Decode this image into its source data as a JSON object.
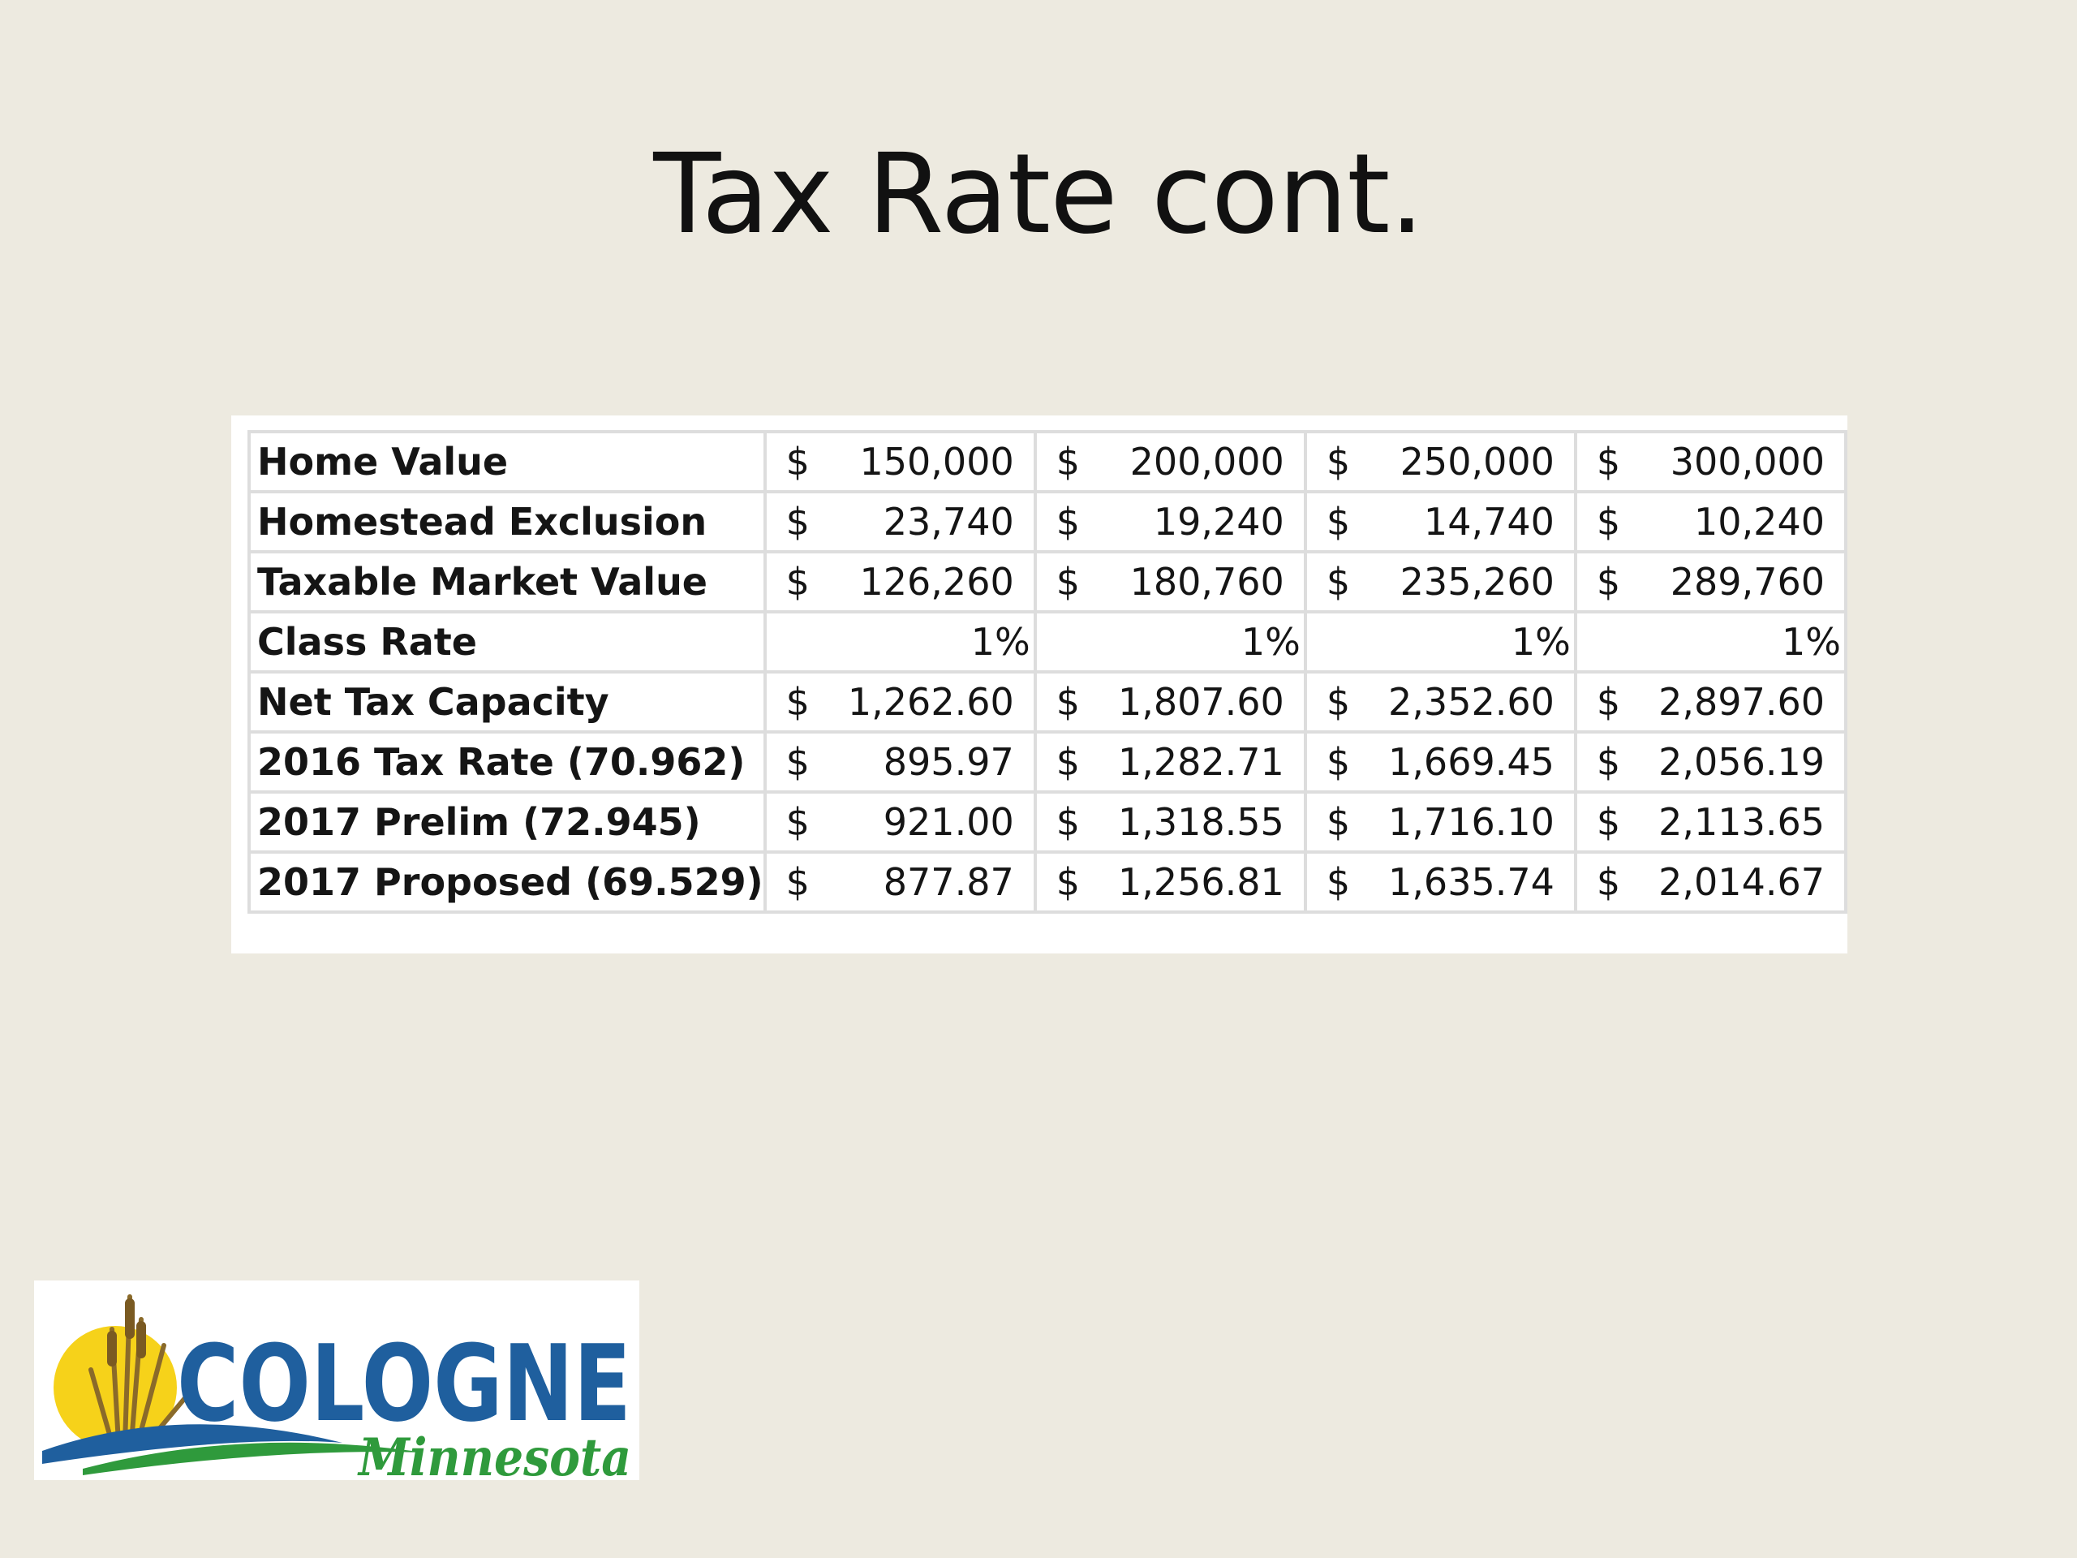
{
  "slide": {
    "title": "Tax Rate cont."
  },
  "table": {
    "rows": [
      {
        "label": "Home Value",
        "cells": [
          {
            "symbol": "$",
            "value": "150,000"
          },
          {
            "symbol": "$",
            "value": "200,000"
          },
          {
            "symbol": "$",
            "value": "250,000"
          },
          {
            "symbol": "$",
            "value": "300,000"
          }
        ]
      },
      {
        "label": "Homestead Exclusion",
        "cells": [
          {
            "symbol": "$",
            "value": "23,740"
          },
          {
            "symbol": "$",
            "value": "19,240"
          },
          {
            "symbol": "$",
            "value": "14,740"
          },
          {
            "symbol": "$",
            "value": "10,240"
          }
        ]
      },
      {
        "label": "Taxable Market Value",
        "cells": [
          {
            "symbol": "$",
            "value": "126,260"
          },
          {
            "symbol": "$",
            "value": "180,760"
          },
          {
            "symbol": "$",
            "value": "235,260"
          },
          {
            "symbol": "$",
            "value": "289,760"
          }
        ]
      },
      {
        "label": "Class Rate",
        "cells": [
          {
            "symbol": "",
            "value": "1%"
          },
          {
            "symbol": "",
            "value": "1%"
          },
          {
            "symbol": "",
            "value": "1%"
          },
          {
            "symbol": "",
            "value": "1%"
          }
        ]
      },
      {
        "label": "Net Tax Capacity",
        "cells": [
          {
            "symbol": "$",
            "value": "1,262.60"
          },
          {
            "symbol": "$",
            "value": "1,807.60"
          },
          {
            "symbol": "$",
            "value": "2,352.60"
          },
          {
            "symbol": "$",
            "value": "2,897.60"
          }
        ]
      },
      {
        "label": "2016 Tax Rate (70.962)",
        "cells": [
          {
            "symbol": "$",
            "value": "895.97"
          },
          {
            "symbol": "$",
            "value": "1,282.71"
          },
          {
            "symbol": "$",
            "value": "1,669.45"
          },
          {
            "symbol": "$",
            "value": "2,056.19"
          }
        ]
      },
      {
        "label": "2017 Prelim (72.945)",
        "cells": [
          {
            "symbol": "$",
            "value": "921.00"
          },
          {
            "symbol": "$",
            "value": "1,318.55"
          },
          {
            "symbol": "$",
            "value": "1,716.10"
          },
          {
            "symbol": "$",
            "value": "2,113.65"
          }
        ]
      },
      {
        "label": "2017 Proposed (69.529)",
        "cells": [
          {
            "symbol": "$",
            "value": "877.87"
          },
          {
            "symbol": "$",
            "value": "1,256.81"
          },
          {
            "symbol": "$",
            "value": "1,635.74"
          },
          {
            "symbol": "$",
            "value": "2,014.67"
          }
        ]
      }
    ]
  },
  "logo": {
    "wordmark": "COLOGNE",
    "subtitle": "Minnesota",
    "colors": {
      "blue": "#1f5f9e",
      "green": "#2f9a3c",
      "sun": "#f6d21a",
      "cattail": "#8a6a2a"
    }
  }
}
